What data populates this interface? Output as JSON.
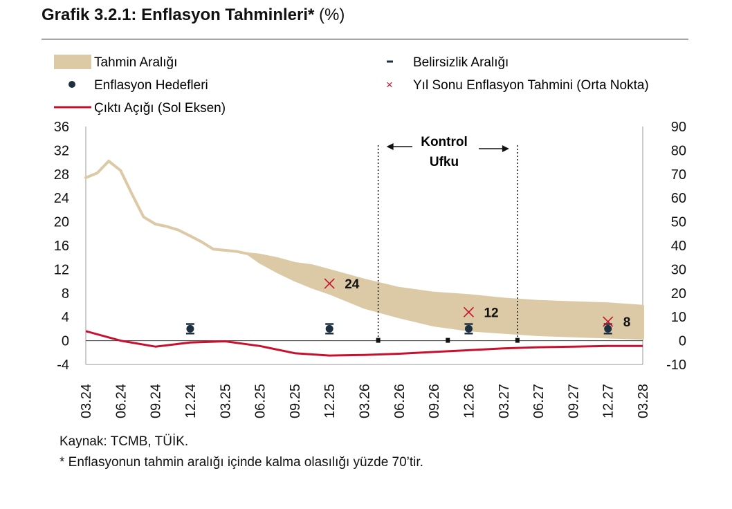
{
  "header": {
    "title_bold": "Grafik 3.2.1: Enflasyon Tahminleri*",
    "title_unit": "(%)"
  },
  "chart_data": {
    "type": "area",
    "legend": {
      "band": "Tahmin Aralığı",
      "target": "Enflasyon Hedefleri",
      "output_gap": "Çıktı Açığı (Sol Eksen)",
      "uncertainty": "Belirsizlik Aralığı",
      "year_end": "Yıl Sonu Enflasyon Tahmini (Orta Nokta)"
    },
    "annotation": {
      "line1": "Kontrol",
      "line2": "Ufku"
    },
    "categories": [
      "03.24",
      "06.24",
      "09.24",
      "12.24",
      "03.25",
      "06.25",
      "09.25",
      "12.25",
      "03.26",
      "06.26",
      "09.26",
      "12.26",
      "03.27",
      "06.27",
      "09.27",
      "12.27",
      "03.28"
    ],
    "left_axis": {
      "ticks": [
        36,
        32,
        28,
        24,
        20,
        16,
        12,
        8,
        4,
        0,
        -4
      ],
      "ylim": [
        -4,
        36
      ]
    },
    "right_axis": {
      "ticks": [
        90,
        80,
        70,
        60,
        50,
        40,
        30,
        20,
        10,
        0,
        -10
      ],
      "ylim": [
        -10,
        90
      ]
    },
    "band": {
      "x": [
        0,
        0.33,
        0.66,
        1,
        1.33,
        1.66,
        2,
        2.33,
        2.66,
        3,
        3.33,
        3.66,
        4,
        4.33,
        4.66,
        5,
        5.5,
        6,
        6.5,
        7,
        8,
        9,
        10,
        11,
        12,
        13,
        14,
        15,
        16
      ],
      "upper_right": [
        68.5,
        70.5,
        75.5,
        71.5,
        61.5,
        52,
        49,
        48,
        46.5,
        44,
        41.5,
        38.5,
        38,
        37.5,
        36.5,
        36,
        34.5,
        32.5,
        31.5,
        29.5,
        25.5,
        22,
        20,
        19,
        17.5,
        16.5,
        16,
        15.5,
        14.5
      ],
      "lower_right": [
        68.5,
        70.5,
        75.5,
        71.5,
        61.5,
        52,
        49,
        48,
        46.5,
        44,
        41.5,
        38.5,
        38,
        37.5,
        36.5,
        33,
        29,
        25.5,
        22.5,
        20,
        14,
        10,
        6.5,
        4.5,
        3.5,
        2.5,
        2,
        1.5,
        1
      ]
    },
    "output_gap": {
      "x": [
        0,
        1,
        2,
        3,
        4,
        5,
        6,
        7,
        8,
        9,
        10,
        11,
        12,
        13,
        14,
        15,
        16
      ],
      "y": [
        1.6,
        0.0,
        -1.0,
        -0.3,
        -0.1,
        -0.9,
        -2.1,
        -2.5,
        -2.4,
        -2.2,
        -1.9,
        -1.6,
        -1.3,
        -1.1,
        -1.0,
        -0.9,
        -0.9
      ]
    },
    "targets": {
      "x": [
        3,
        7,
        11,
        15
      ],
      "y_right": [
        5,
        5,
        5,
        5
      ],
      "uncertainty_low": [
        3,
        3,
        3,
        3
      ],
      "uncertainty_high": [
        7,
        7,
        7,
        7
      ]
    },
    "year_end_forecasts": {
      "x": [
        7,
        11,
        15
      ],
      "y_right": [
        24,
        12,
        8
      ],
      "labels": [
        "24",
        "12",
        "8"
      ]
    },
    "control_horizon": {
      "start": 8.4,
      "end": 12.4
    }
  },
  "notes": {
    "source": "Kaynak: TCMB, TÜİK.",
    "footnote": "* Enflasyonun tahmin aralığı içinde kalma olasılığı yüzde 70’tir."
  }
}
